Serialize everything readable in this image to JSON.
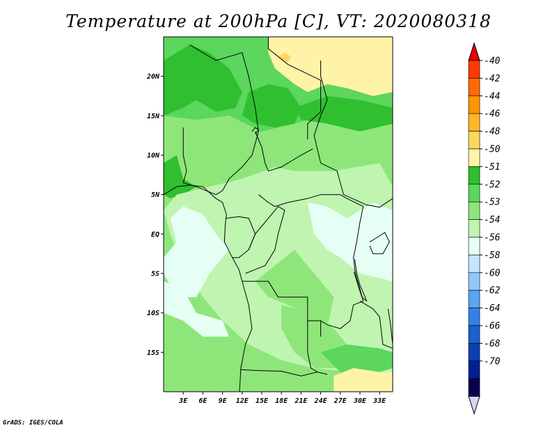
{
  "chart_data": {
    "type": "heatmap",
    "title": "Temperature at 200hPa [C], VT: 2020080318",
    "variable": "Temperature",
    "level": "200hPa",
    "units": "C",
    "valid_time": "2020080318",
    "x_ticks": [
      "3E",
      "6E",
      "9E",
      "12E",
      "15E",
      "18E",
      "21E",
      "24E",
      "27E",
      "30E",
      "33E"
    ],
    "y_ticks": [
      "20N",
      "15N",
      "10N",
      "5N",
      "EQ",
      "5S",
      "10S",
      "15S"
    ],
    "xlim": [
      0,
      35
    ],
    "ylim": [
      -20,
      25
    ],
    "colorbar": {
      "labels": [
        "-40",
        "-42",
        "-44",
        "-46",
        "-48",
        "-50",
        "-51",
        "-52",
        "-53",
        "-54",
        "-56",
        "-58",
        "-60",
        "-62",
        "-64",
        "-66",
        "-68",
        "-70"
      ],
      "colors": [
        "#e10000",
        "#ff3a00",
        "#ff6a00",
        "#ff9500",
        "#ffb628",
        "#ffd562",
        "#fff3a8",
        "#2fbf2f",
        "#5cd65c",
        "#8ee67a",
        "#bff5b0",
        "#e6fff5",
        "#c3e6ff",
        "#90c8fa",
        "#5aa5f0",
        "#3680e5",
        "#1b5fd0",
        "#0c40b0",
        "#002090",
        "#0b0050",
        "#d5d5f5"
      ]
    },
    "colormap_tints": {
      "m50": "#fff3a8",
      "m48": "#ffd562",
      "m51": "#2fbf2f",
      "m52": "#5cd65c",
      "m53": "#8ee67a",
      "m54": "#bff5b0",
      "m56": "#e6fff5"
    }
  },
  "footer": {
    "credit": "GrADS: IGES/COLA"
  }
}
